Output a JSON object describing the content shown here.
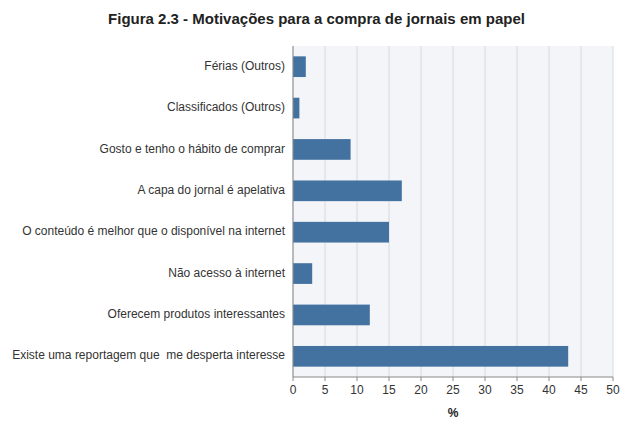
{
  "chart_data": {
    "type": "bar",
    "orientation": "horizontal",
    "title": "Figura 2.3 - Motivações para a compra de jornais em papel",
    "categories": [
      "Existe uma reportagem que  me desperta interesse",
      "Oferecem produtos interessantes",
      "Não acesso à internet",
      "O conteúdo é melhor que o disponível na internet",
      "A capa do jornal é apelativa",
      "Gosto e tenho o hábito de comprar",
      "Classificados (Outros)",
      "Férias (Outros)"
    ],
    "values": [
      43,
      12,
      3,
      15,
      17,
      9,
      1,
      2
    ],
    "color": "#4472A0",
    "xlabel": "%",
    "xlim": [
      0,
      50
    ],
    "xticks": [
      0,
      5,
      10,
      15,
      20,
      25,
      30,
      35,
      40,
      45,
      50
    ],
    "grid": true
  }
}
